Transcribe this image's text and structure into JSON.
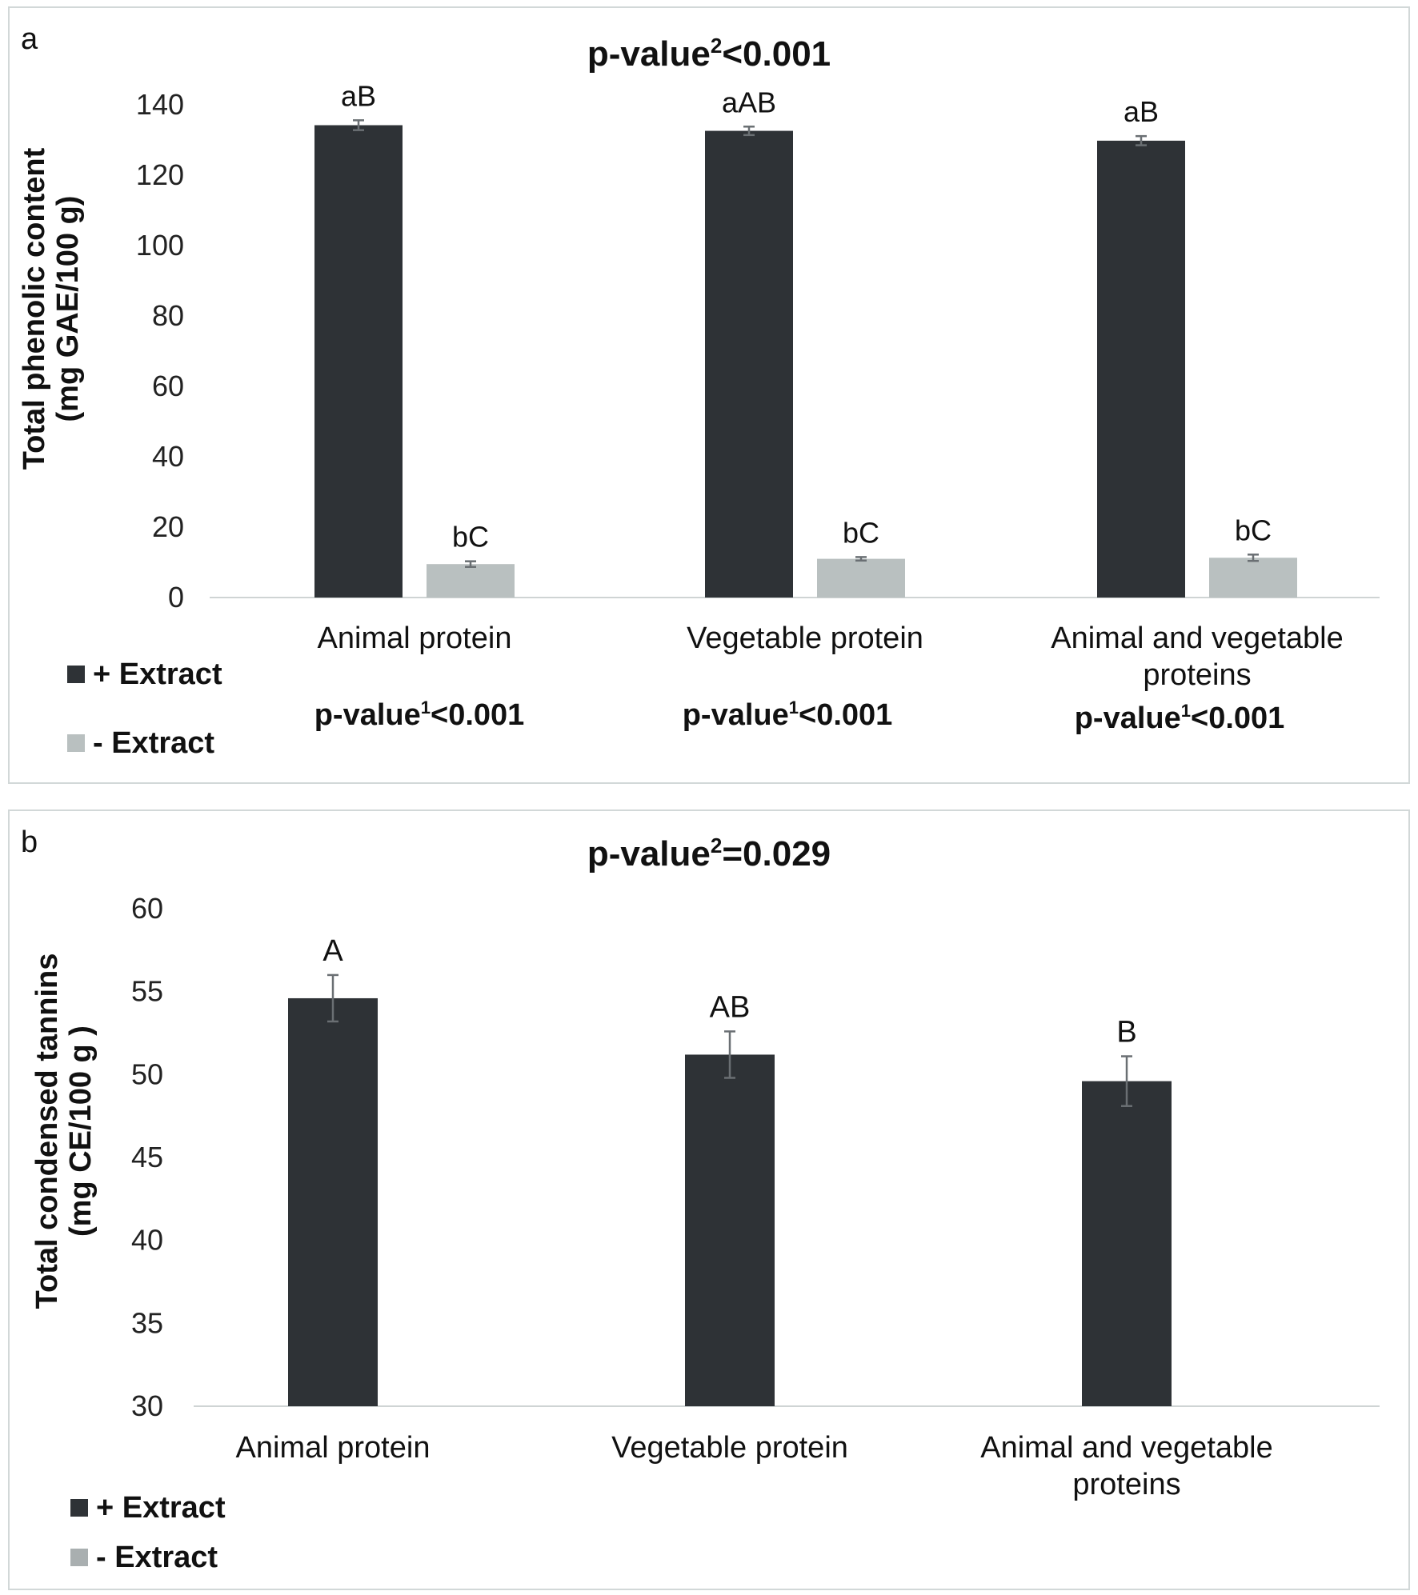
{
  "chart_data": [
    {
      "id": "a",
      "type": "bar",
      "panel_label": "a",
      "title_prefix": "p-value",
      "title_sup": "2",
      "title_suffix": "<0.001",
      "ylabel_line1": "Total phenolic content",
      "ylabel_line2": "(mg GAE/100 g)",
      "ylim": [
        0,
        140
      ],
      "yticks": [
        0,
        20,
        40,
        60,
        80,
        100,
        120,
        140
      ],
      "categories": [
        [
          "Animal protein"
        ],
        [
          "Vegetable protein"
        ],
        [
          "Animal and vegetable",
          "proteins"
        ]
      ],
      "series": [
        {
          "name": "+ Extract",
          "color": "#2e3236",
          "values": [
            134.2,
            132.6,
            129.8
          ],
          "errors": [
            1.4,
            1.2,
            1.3
          ],
          "labels": [
            "aB",
            "aAB",
            "aB"
          ]
        },
        {
          "name": "- Extract",
          "color": "#b9c0c0",
          "values": [
            9.5,
            11.0,
            11.3
          ],
          "errors": [
            0.8,
            0.5,
            0.9
          ],
          "labels": [
            "bC",
            "bC",
            "bC"
          ]
        }
      ],
      "group_pvalues": [
        {
          "prefix": "p-value",
          "sup": "1",
          "suffix": "<0.001"
        },
        {
          "prefix": "p-value",
          "sup": "1",
          "suffix": "<0.001"
        },
        {
          "prefix": "p-value",
          "sup": "1",
          "suffix": "<0.001"
        }
      ],
      "legend": [
        {
          "label": "+ Extract",
          "color": "#2e3236"
        },
        {
          "label": "- Extract",
          "color": "#b9c0c0"
        }
      ]
    },
    {
      "id": "b",
      "type": "bar",
      "panel_label": "b",
      "title_prefix": "p-value",
      "title_sup": "2",
      "title_suffix": "=0.029",
      "ylabel_line1": "Total condensed tannins",
      "ylabel_line2": "(mg CE/100 g )",
      "ylim": [
        30,
        60
      ],
      "yticks": [
        30,
        35,
        40,
        45,
        50,
        55,
        60
      ],
      "categories": [
        [
          "Animal protein"
        ],
        [
          "Vegetable protein"
        ],
        [
          "Animal and vegetable",
          "proteins"
        ]
      ],
      "series": [
        {
          "name": "+ Extract",
          "color": "#2e3236",
          "values": [
            54.6,
            51.2,
            49.6
          ],
          "errors": [
            1.4,
            1.4,
            1.5
          ],
          "labels": [
            "A",
            "AB",
            "B"
          ]
        }
      ],
      "legend": [
        {
          "label": "+ Extract",
          "color": "#2e3236"
        },
        {
          "label": "- Extract",
          "color": "#a9afb0"
        }
      ]
    }
  ]
}
